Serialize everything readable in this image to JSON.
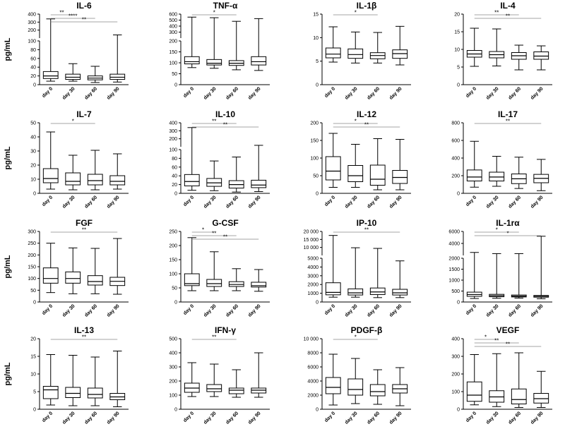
{
  "figure": {
    "ylabel": "pg/mL"
  },
  "chart_data": [
    {
      "type": "box",
      "title": "IL-6",
      "categories": [
        "day 0",
        "day 30",
        "day 60",
        "day 90"
      ],
      "yscale": "break",
      "ybreak": 100,
      "ylim": [
        0,
        400
      ],
      "yticks": [
        0,
        20,
        40,
        60,
        80,
        100,
        200,
        300,
        400
      ],
      "boxes": [
        {
          "min": 8,
          "q1": 14,
          "median": 20,
          "q3": 30,
          "max": 340
        },
        {
          "min": 8,
          "q1": 12,
          "median": 17,
          "q3": 24,
          "max": 48
        },
        {
          "min": 5,
          "q1": 11,
          "median": 15,
          "q3": 20,
          "max": 42
        },
        {
          "min": 6,
          "q1": 12,
          "median": 17,
          "q3": 24,
          "max": 140
        }
      ],
      "significance": [
        {
          "from": 0,
          "to": 1,
          "label": "**"
        },
        {
          "from": 0,
          "to": 2,
          "label": "****"
        },
        {
          "from": 0,
          "to": 3,
          "label": "**"
        }
      ]
    },
    {
      "type": "box",
      "title": "TNF-α",
      "categories": [
        "day 0",
        "day 30",
        "day 60",
        "day 90"
      ],
      "yscale": "break",
      "ybreak": 200,
      "ylim": [
        0,
        600
      ],
      "yticks": [
        0,
        50,
        100,
        150,
        200,
        300,
        400,
        500,
        600
      ],
      "boxes": [
        {
          "min": 78,
          "q1": 95,
          "median": 105,
          "q3": 128,
          "max": 550
        },
        {
          "min": 75,
          "q1": 90,
          "median": 98,
          "q3": 115,
          "max": 540
        },
        {
          "min": 68,
          "q1": 88,
          "median": 98,
          "q3": 110,
          "max": 480
        },
        {
          "min": 65,
          "q1": 90,
          "median": 105,
          "q3": 128,
          "max": 525
        }
      ],
      "significance": [
        {
          "from": 0,
          "to": 2,
          "label": "*"
        }
      ]
    },
    {
      "type": "box",
      "title": "IL-1β",
      "categories": [
        "day 0",
        "day 30",
        "day 60",
        "day 90"
      ],
      "yscale": "linear",
      "ylim": [
        0,
        15
      ],
      "yticks": [
        0,
        5,
        10,
        15
      ],
      "boxes": [
        {
          "min": 4.8,
          "q1": 5.7,
          "median": 6.5,
          "q3": 7.8,
          "max": 12.3
        },
        {
          "min": 4.6,
          "q1": 5.6,
          "median": 6.4,
          "q3": 7.6,
          "max": 11.2
        },
        {
          "min": 4.6,
          "q1": 5.5,
          "median": 6.2,
          "q3": 6.8,
          "max": 11.1
        },
        {
          "min": 4.2,
          "q1": 5.6,
          "median": 6.6,
          "q3": 7.4,
          "max": 12.4
        }
      ],
      "significance": [
        {
          "from": 0,
          "to": 2,
          "label": "*"
        }
      ]
    },
    {
      "type": "box",
      "title": "IL-4",
      "categories": [
        "day 0",
        "day 30",
        "day 60",
        "day 90"
      ],
      "yscale": "linear",
      "ylim": [
        0,
        20
      ],
      "yticks": [
        0,
        5,
        10,
        15,
        20
      ],
      "boxes": [
        {
          "min": 5.2,
          "q1": 7.8,
          "median": 8.7,
          "q3": 9.7,
          "max": 16
        },
        {
          "min": 5.3,
          "q1": 7.6,
          "median": 8.5,
          "q3": 9.4,
          "max": 15.8
        },
        {
          "min": 4.2,
          "q1": 7.2,
          "median": 8.2,
          "q3": 9.1,
          "max": 11.2
        },
        {
          "min": 4.2,
          "q1": 7.2,
          "median": 8.1,
          "q3": 9.3,
          "max": 11
        }
      ],
      "significance": [
        {
          "from": 0,
          "to": 2,
          "label": "**"
        },
        {
          "from": 0,
          "to": 3,
          "label": "**"
        }
      ]
    },
    {
      "type": "box",
      "title": "IL-7",
      "categories": [
        "day 0",
        "day 30",
        "day 60",
        "day 90"
      ],
      "yscale": "linear",
      "ylim": [
        0,
        50
      ],
      "yticks": [
        0,
        10,
        20,
        30,
        40,
        50
      ],
      "boxes": [
        {
          "min": 3,
          "q1": 7.5,
          "median": 10.5,
          "q3": 17.5,
          "max": 43.5
        },
        {
          "min": 2.5,
          "q1": 6,
          "median": 8.5,
          "q3": 14.5,
          "max": 27
        },
        {
          "min": 2.5,
          "q1": 6,
          "median": 9,
          "q3": 13.5,
          "max": 30.5
        },
        {
          "min": 3,
          "q1": 6,
          "median": 8.5,
          "q3": 12.5,
          "max": 28
        }
      ],
      "significance": [
        {
          "from": 0,
          "to": 2,
          "label": "*"
        }
      ]
    },
    {
      "type": "box",
      "title": "IL-10",
      "categories": [
        "day 0",
        "day 30",
        "day 60",
        "day 90"
      ],
      "yscale": "break",
      "ybreak": 100,
      "ylim": [
        0,
        400
      ],
      "yticks": [
        0,
        20,
        40,
        60,
        80,
        100,
        200,
        300,
        400
      ],
      "boxes": [
        {
          "min": 7,
          "q1": 17,
          "median": 27,
          "q3": 43,
          "max": 340
        },
        {
          "min": 6,
          "q1": 16,
          "median": 24,
          "q3": 34,
          "max": 74
        },
        {
          "min": 3,
          "q1": 12,
          "median": 20,
          "q3": 29,
          "max": 83
        },
        {
          "min": 4,
          "q1": 13,
          "median": 19,
          "q3": 30,
          "max": 118
        }
      ],
      "significance": [
        {
          "from": 0,
          "to": 2,
          "label": "**"
        },
        {
          "from": 0,
          "to": 3,
          "label": "**"
        }
      ]
    },
    {
      "type": "box",
      "title": "IL-12",
      "categories": [
        "day 0",
        "day 30",
        "day 60",
        "day 90"
      ],
      "yscale": "linear",
      "ylim": [
        0,
        200
      ],
      "yticks": [
        0,
        50,
        100,
        150,
        200
      ],
      "boxes": [
        {
          "min": 17,
          "q1": 38,
          "median": 63,
          "q3": 104,
          "max": 170
        },
        {
          "min": 17,
          "q1": 33,
          "median": 50,
          "q3": 79,
          "max": 139
        },
        {
          "min": 10,
          "q1": 23,
          "median": 40,
          "q3": 80,
          "max": 155
        },
        {
          "min": 10,
          "q1": 28,
          "median": 45,
          "q3": 65,
          "max": 153
        }
      ],
      "significance": [
        {
          "from": 0,
          "to": 2,
          "label": "*"
        },
        {
          "from": 0,
          "to": 3,
          "label": "**"
        }
      ]
    },
    {
      "type": "box",
      "title": "IL-17",
      "categories": [
        "day 0",
        "day 30",
        "day 60",
        "day 90"
      ],
      "yscale": "linear",
      "ylim": [
        0,
        800
      ],
      "yticks": [
        0,
        200,
        400,
        600,
        800
      ],
      "boxes": [
        {
          "min": 70,
          "q1": 140,
          "median": 185,
          "q3": 265,
          "max": 590
        },
        {
          "min": 80,
          "q1": 140,
          "median": 185,
          "q3": 240,
          "max": 420
        },
        {
          "min": 55,
          "q1": 110,
          "median": 165,
          "q3": 220,
          "max": 410
        },
        {
          "min": 30,
          "q1": 120,
          "median": 170,
          "q3": 215,
          "max": 385
        }
      ],
      "significance": [
        {
          "from": 0,
          "to": 3,
          "label": "**"
        }
      ]
    },
    {
      "type": "box",
      "title": "FGF",
      "categories": [
        "day 0",
        "day 30",
        "day 60",
        "day 90"
      ],
      "yscale": "linear",
      "ylim": [
        0,
        300
      ],
      "yticks": [
        0,
        50,
        100,
        150,
        200,
        250,
        300
      ],
      "boxes": [
        {
          "min": 40,
          "q1": 80,
          "median": 100,
          "q3": 145,
          "max": 250
        },
        {
          "min": 35,
          "q1": 80,
          "median": 100,
          "q3": 128,
          "max": 230
        },
        {
          "min": 35,
          "q1": 72,
          "median": 87,
          "q3": 112,
          "max": 228
        },
        {
          "min": 33,
          "q1": 70,
          "median": 88,
          "q3": 105,
          "max": 270
        }
      ],
      "significance": [
        {
          "from": 0,
          "to": 3,
          "label": "**"
        }
      ]
    },
    {
      "type": "box",
      "title": "G-CSF",
      "categories": [
        "day 0",
        "day 30",
        "day 60",
        "day 90"
      ],
      "yscale": "linear",
      "ylim": [
        0,
        250
      ],
      "yticks": [
        0,
        50,
        100,
        150,
        200,
        250
      ],
      "boxes": [
        {
          "min": 40,
          "q1": 58,
          "median": 65,
          "q3": 100,
          "max": 228
        },
        {
          "min": 40,
          "q1": 55,
          "median": 65,
          "q3": 80,
          "max": 178
        },
        {
          "min": 40,
          "q1": 55,
          "median": 62,
          "q3": 72,
          "max": 118
        },
        {
          "min": 38,
          "q1": 53,
          "median": 58,
          "q3": 70,
          "max": 115
        }
      ],
      "significance": [
        {
          "from": 0,
          "to": 1,
          "label": "*"
        },
        {
          "from": 0,
          "to": 2,
          "label": "**"
        },
        {
          "from": 0,
          "to": 3,
          "label": "**"
        }
      ]
    },
    {
      "type": "box",
      "title": "IP-10",
      "categories": [
        "day 0",
        "day 30",
        "day 60",
        "day 90"
      ],
      "yscale": "break",
      "ybreak": 5000,
      "ylim": [
        0,
        20000
      ],
      "yticks": [
        0,
        1000,
        2000,
        3000,
        4000,
        5000,
        10000,
        15000,
        20000
      ],
      "yticklabels": [
        "0",
        "1000",
        "2000",
        "3000",
        "4000",
        "5000",
        "10 000",
        "15 000",
        "20 000"
      ],
      "boxes": [
        {
          "min": 550,
          "q1": 820,
          "median": 1100,
          "q3": 2200,
          "max": 17500
        },
        {
          "min": 550,
          "q1": 800,
          "median": 1050,
          "q3": 1500,
          "max": 9800
        },
        {
          "min": 500,
          "q1": 850,
          "median": 1150,
          "q3": 1600,
          "max": 9400
        },
        {
          "min": 500,
          "q1": 800,
          "median": 1050,
          "q3": 1450,
          "max": 4700
        }
      ],
      "significance": [
        {
          "from": 0,
          "to": 3,
          "label": "**"
        }
      ]
    },
    {
      "type": "box",
      "title": "IL-1rα",
      "categories": [
        "day 0",
        "day 30",
        "day 60",
        "day 90"
      ],
      "yscale": "break",
      "ybreak": 2000,
      "ylim": [
        0,
        6000
      ],
      "yticks": [
        0,
        500,
        1000,
        1500,
        2000,
        4000,
        6000
      ],
      "boxes": [
        {
          "min": 160,
          "q1": 260,
          "median": 340,
          "q3": 450,
          "max": 2500
        },
        {
          "min": 170,
          "q1": 240,
          "median": 290,
          "q3": 350,
          "max": 2300
        },
        {
          "min": 180,
          "q1": 230,
          "median": 270,
          "q3": 320,
          "max": 2300
        },
        {
          "min": 150,
          "q1": 220,
          "median": 260,
          "q3": 300,
          "max": 5200
        }
      ],
      "significance": [
        {
          "from": 0,
          "to": 2,
          "label": "*"
        },
        {
          "from": 0,
          "to": 3,
          "label": "*"
        }
      ]
    },
    {
      "type": "box",
      "title": "IL-13",
      "categories": [
        "day 0",
        "day 30",
        "day 60",
        "day 90"
      ],
      "yscale": "linear",
      "ylim": [
        0,
        20
      ],
      "yticks": [
        0,
        5,
        10,
        15,
        20
      ],
      "boxes": [
        {
          "min": 1.2,
          "q1": 3,
          "median": 5.5,
          "q3": 6.5,
          "max": 15.5
        },
        {
          "min": 1,
          "q1": 3.3,
          "median": 4.5,
          "q3": 6.2,
          "max": 15.3
        },
        {
          "min": 1,
          "q1": 3.2,
          "median": 4.2,
          "q3": 6,
          "max": 14.8
        },
        {
          "min": 0.7,
          "q1": 2.7,
          "median": 3.5,
          "q3": 4.5,
          "max": 16.5
        }
      ],
      "significance": [
        {
          "from": 0,
          "to": 3,
          "label": "**"
        }
      ]
    },
    {
      "type": "box",
      "title": "IFN-γ",
      "categories": [
        "day 0",
        "day 30",
        "day 60",
        "day 90"
      ],
      "yscale": "linear",
      "ylim": [
        0,
        500
      ],
      "yticks": [
        0,
        100,
        200,
        300,
        400,
        500
      ],
      "boxes": [
        {
          "min": 90,
          "q1": 120,
          "median": 150,
          "q3": 185,
          "max": 330
        },
        {
          "min": 90,
          "q1": 125,
          "median": 145,
          "q3": 175,
          "max": 320
        },
        {
          "min": 85,
          "q1": 110,
          "median": 135,
          "q3": 150,
          "max": 280
        },
        {
          "min": 85,
          "q1": 115,
          "median": 135,
          "q3": 150,
          "max": 400
        }
      ],
      "significance": [
        {
          "from": 0,
          "to": 2,
          "label": "**"
        }
      ]
    },
    {
      "type": "box",
      "title": "PDGF-β",
      "categories": [
        "day 0",
        "day 30",
        "day 60",
        "day 90"
      ],
      "yscale": "linear",
      "ylim": [
        0,
        10000
      ],
      "yticks": [
        0,
        2000,
        4000,
        6000,
        8000,
        10000
      ],
      "yticklabels": [
        "0",
        "2000",
        "4000",
        "6000",
        "8000",
        "10 000"
      ],
      "boxes": [
        {
          "min": 600,
          "q1": 2200,
          "median": 3100,
          "q3": 4500,
          "max": 7800
        },
        {
          "min": 800,
          "q1": 2000,
          "median": 2800,
          "q3": 4300,
          "max": 7200
        },
        {
          "min": 700,
          "q1": 1900,
          "median": 2500,
          "q3": 3500,
          "max": 5600
        },
        {
          "min": 500,
          "q1": 2300,
          "median": 2900,
          "q3": 3500,
          "max": 5900
        }
      ],
      "significance": [
        {
          "from": 0,
          "to": 2,
          "label": "*"
        }
      ]
    },
    {
      "type": "box",
      "title": "VEGF",
      "categories": [
        "day 0",
        "day 30",
        "day 60",
        "day 90"
      ],
      "yscale": "linear",
      "ylim": [
        0,
        400
      ],
      "yticks": [
        0,
        100,
        200,
        300,
        400
      ],
      "boxes": [
        {
          "min": 25,
          "q1": 45,
          "median": 80,
          "q3": 155,
          "max": 310
        },
        {
          "min": 15,
          "q1": 40,
          "median": 70,
          "q3": 105,
          "max": 315
        },
        {
          "min": 10,
          "q1": 30,
          "median": 55,
          "q3": 115,
          "max": 320
        },
        {
          "min": 10,
          "q1": 35,
          "median": 60,
          "q3": 90,
          "max": 215
        }
      ],
      "significance": [
        {
          "from": 0,
          "to": 1,
          "label": "*"
        },
        {
          "from": 0,
          "to": 2,
          "label": "**"
        },
        {
          "from": 0,
          "to": 3,
          "label": "**"
        }
      ]
    }
  ]
}
